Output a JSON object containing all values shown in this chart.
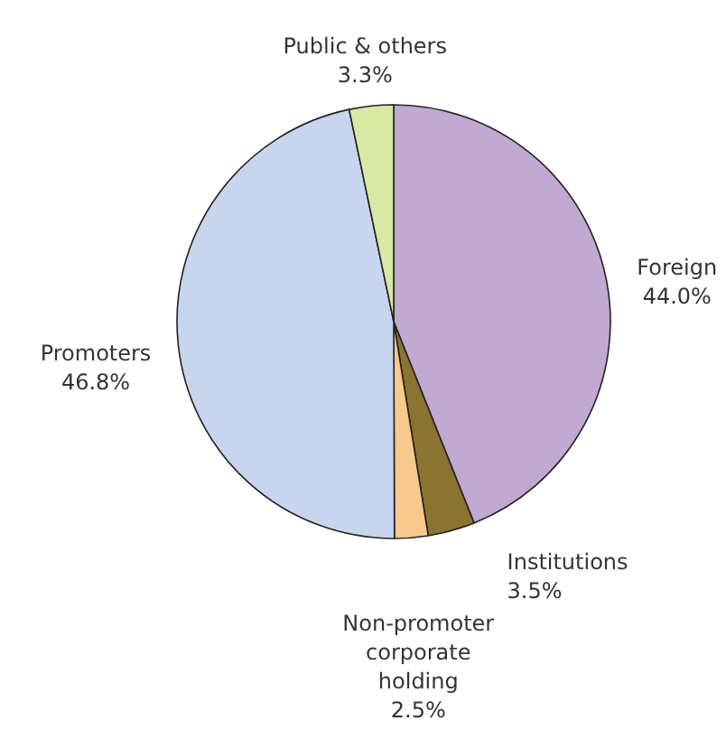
{
  "chart_data": {
    "type": "pie",
    "categories": [
      "Foreign",
      "Institutions",
      "Non-promoter corporate holding",
      "Promoters",
      "Public & others"
    ],
    "values": [
      44.0,
      3.5,
      2.5,
      46.8,
      3.3
    ],
    "value_labels": [
      "44.0%",
      "3.5%",
      "2.5%",
      "46.8%",
      "3.3%"
    ],
    "colors": [
      "#c1a9d1",
      "#8b7432",
      "#f7c98c",
      "#c8d5ee",
      "#d9e8a2"
    ]
  }
}
